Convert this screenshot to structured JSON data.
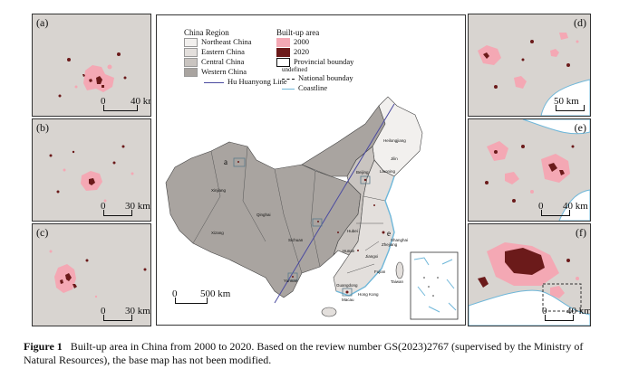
{
  "panels": [
    {
      "label": "(a)",
      "scale_zero": "0",
      "scale_dist": "40 km"
    },
    {
      "label": "(b)",
      "scale_zero": "0",
      "scale_dist": "30 km"
    },
    {
      "label": "(c)",
      "scale_zero": "0",
      "scale_dist": "30 km"
    },
    {
      "label": "(d)",
      "scale_zero": "0",
      "scale_dist": "50 km"
    },
    {
      "label": "(e)",
      "scale_zero": "0",
      "scale_dist": "40 km"
    },
    {
      "label": "(f)",
      "scale_zero": "0",
      "scale_dist": "40 km"
    }
  ],
  "legend": {
    "region_title": "China Region",
    "regions": [
      "Northeast China",
      "Eastern China",
      "Central China",
      "Western China"
    ],
    "hu_line": "Hu Huanyong Line",
    "builtup_title": "Built-up area",
    "years": [
      "2000",
      "2020"
    ],
    "provincial": "Provincial bounday",
    "undefined": "undefined",
    "national": "National bounday",
    "coastline": "Coastline"
  },
  "colors": {
    "northeast": "#f2f0ee",
    "eastern": "#e3dfdc",
    "central": "#c9c4c0",
    "western": "#a9a4a0",
    "builtup_2000": "#f4a8b4",
    "builtup_2020": "#6b1a1a",
    "hu_line": "#4a4aa0",
    "coastline": "#6fb7d9",
    "panel_bg": "#d8d4d0"
  },
  "main_map": {
    "scale_zero": "0",
    "scale_dist": "500 km",
    "site_labels": {
      "a": "a",
      "e": "e"
    },
    "provinces": [
      "Heilongjiang",
      "Jilin",
      "Liaoning",
      "Beijing",
      "Xinjiang",
      "Qinghai",
      "Xizang",
      "Sichuan",
      "Yunnan",
      "Hubei",
      "Hunan",
      "Jiangxi",
      "Zhejiang",
      "Shanghai",
      "Fujian",
      "Guangdong",
      "Hong Kong",
      "Macau",
      "Taiwan"
    ]
  },
  "caption": {
    "label": "Figure 1",
    "text": "Built-up area in China from 2000 to 2020. Based on the review number GS(2023)2767 (supervised by the Ministry of Natural Resources), the base map has not been modified."
  }
}
